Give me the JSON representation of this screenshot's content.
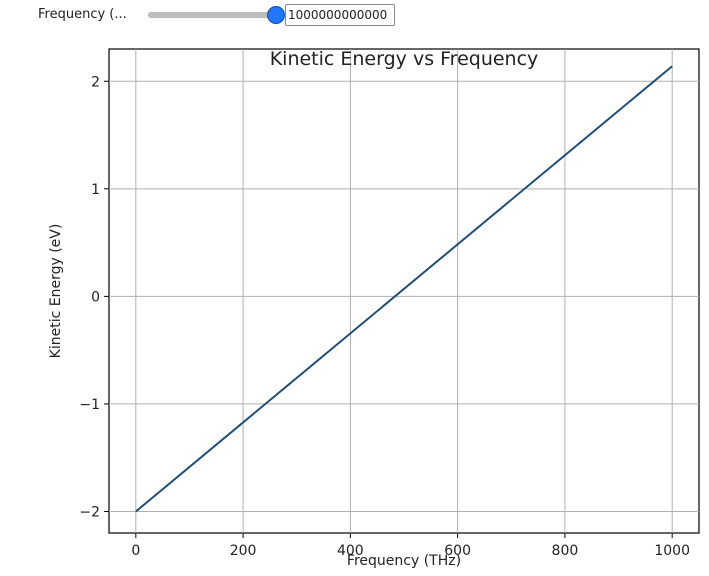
{
  "controls": {
    "slider_label": "Frequency (...",
    "slider_value_text": "1000000000000",
    "slider_fraction": 1.0
  },
  "chart_data": {
    "type": "line",
    "title": "Kinetic Energy vs Frequency",
    "xlabel": "Frequency (THz)",
    "ylabel": "Kinetic Energy (eV)",
    "xlim": [
      -50,
      1050
    ],
    "ylim": [
      -2.2,
      2.3
    ],
    "xticks": [
      0,
      200,
      400,
      600,
      800,
      1000
    ],
    "yticks": [
      -2,
      -1,
      0,
      1,
      2
    ],
    "grid": true,
    "series": [
      {
        "color": "#1f4e79",
        "x": [
          0,
          1000
        ],
        "y": [
          -2.0,
          2.14
        ]
      }
    ]
  }
}
